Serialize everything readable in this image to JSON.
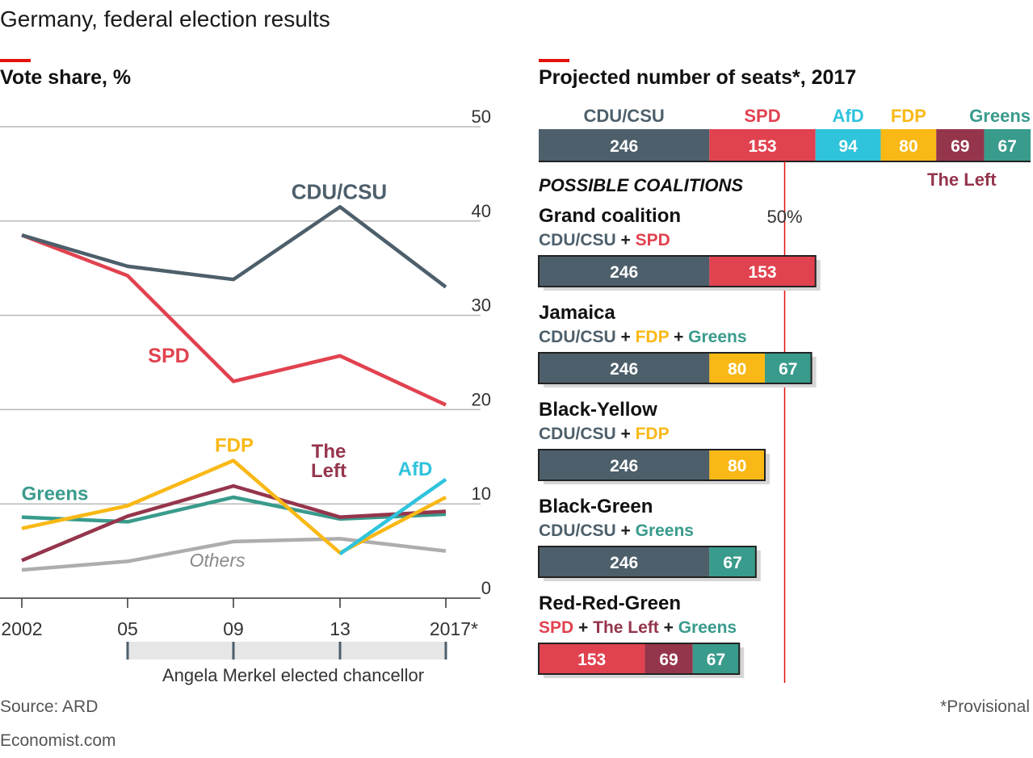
{
  "title": "Germany, federal election results",
  "left_subtitle": "Vote share, %",
  "right_subtitle": "Projected number of seats*, 2017",
  "source": "Source: ARD",
  "footnote": "*Provisional",
  "brand": "Economist.com",
  "colors": {
    "CDU/CSU": "#4d5f6b",
    "SPD": "#e1424f",
    "AfD": "#2fc3dc",
    "FDP": "#f9b815",
    "The Left": "#95354c",
    "Greens": "#399b8c",
    "Others": "#adadad",
    "grey_band": "#e6e6e6",
    "red_marker": "#e3120b"
  },
  "chart_data": [
    {
      "type": "line",
      "title": "Vote share, %",
      "x": [
        "2002",
        "05",
        "09",
        "13",
        "2017*"
      ],
      "ylim": [
        0,
        50
      ],
      "yticks": [
        "0",
        "10",
        "20",
        "30",
        "40",
        "50"
      ],
      "grid": true,
      "series": [
        {
          "name": "CDU/CSU",
          "label": "CDU/CSU",
          "values": [
            38.5,
            35.2,
            33.8,
            41.5,
            33.0
          ]
        },
        {
          "name": "SPD",
          "label": "SPD",
          "values": [
            38.5,
            34.2,
            23.0,
            25.7,
            20.5
          ]
        },
        {
          "name": "FDP",
          "label": "FDP",
          "values": [
            7.4,
            9.8,
            14.6,
            4.8,
            10.7
          ]
        },
        {
          "name": "The Left",
          "label_lines": [
            "The",
            "Left"
          ],
          "values": [
            4.0,
            8.7,
            11.9,
            8.6,
            9.2
          ]
        },
        {
          "name": "Greens",
          "label": "Greens",
          "values": [
            8.6,
            8.1,
            10.7,
            8.4,
            8.9
          ]
        },
        {
          "name": "AfD",
          "label": "AfD",
          "values": [
            null,
            null,
            null,
            4.7,
            12.6
          ]
        },
        {
          "name": "Others",
          "label": "Others",
          "values": [
            3.0,
            3.9,
            6.0,
            6.3,
            5.0
          ]
        }
      ],
      "annotation": "Angela Merkel elected chancellor",
      "annotation_span": [
        "05",
        "2017*"
      ]
    },
    {
      "type": "bar",
      "title": "Projected number of seats*, 2017",
      "stacked": true,
      "seats": [
        {
          "party": "CDU/CSU",
          "value": 246
        },
        {
          "party": "SPD",
          "value": 153
        },
        {
          "party": "AfD",
          "value": 94
        },
        {
          "party": "FDP",
          "value": 80
        },
        {
          "party": "The Left",
          "value": 69
        },
        {
          "party": "Greens",
          "value": 67
        }
      ],
      "majority_label": "50%",
      "coalitions_heading": "POSSIBLE COALITIONS",
      "coalitions": [
        {
          "name": "Grand coalition",
          "parties": [
            "CDU/CSU",
            "SPD"
          ]
        },
        {
          "name": "Jamaica",
          "parties": [
            "CDU/CSU",
            "FDP",
            "Greens"
          ]
        },
        {
          "name": "Black-Yellow",
          "parties": [
            "CDU/CSU",
            "FDP"
          ]
        },
        {
          "name": "Black-Green",
          "parties": [
            "CDU/CSU",
            "Greens"
          ]
        },
        {
          "name": "Red-Red-Green",
          "parties": [
            "SPD",
            "The Left",
            "Greens"
          ]
        }
      ]
    }
  ]
}
